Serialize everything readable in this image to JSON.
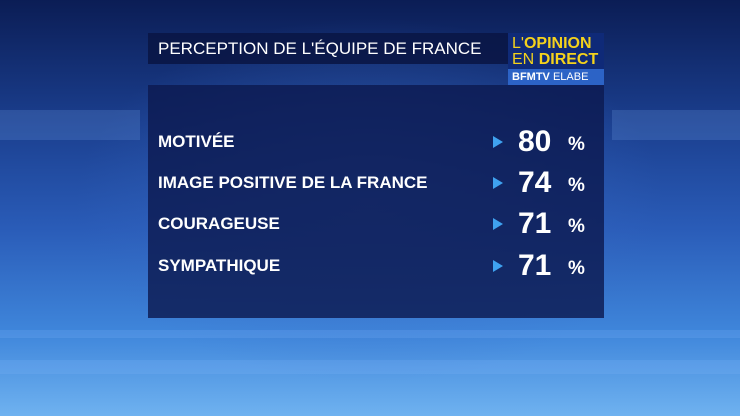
{
  "header": {
    "title": "PERCEPTION DE L'ÉQUIPE DE FRANCE"
  },
  "logo": {
    "line1a": "L'",
    "line1b": "OPINION",
    "line2a": "EN",
    "line2b": "DIRECT",
    "line3a": "BFMTV",
    "line3b": "ELABE"
  },
  "unit": "%",
  "items": [
    {
      "label": "MOTIVÉE",
      "value": 80
    },
    {
      "label": "IMAGE POSITIVE DE LA FRANCE",
      "value": 74
    },
    {
      "label": "COURAGEUSE",
      "value": 71
    },
    {
      "label": "SYMPATHIQUE",
      "value": 71
    }
  ]
}
